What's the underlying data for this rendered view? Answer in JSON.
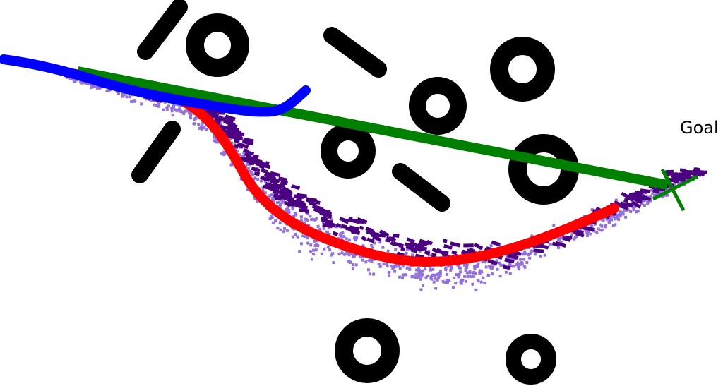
{
  "goal_label": "Goal",
  "colors": {
    "background": "#ffffff",
    "obstacle": "#000000",
    "sample_light": "#9370db",
    "sample_dark": "#4b0082",
    "path_red": "#ff0000",
    "path_blue": "#0000ff",
    "path_green": "#008000",
    "goal_marker": "#008000"
  },
  "icons": {
    "goal_marker": "x-mark"
  }
}
